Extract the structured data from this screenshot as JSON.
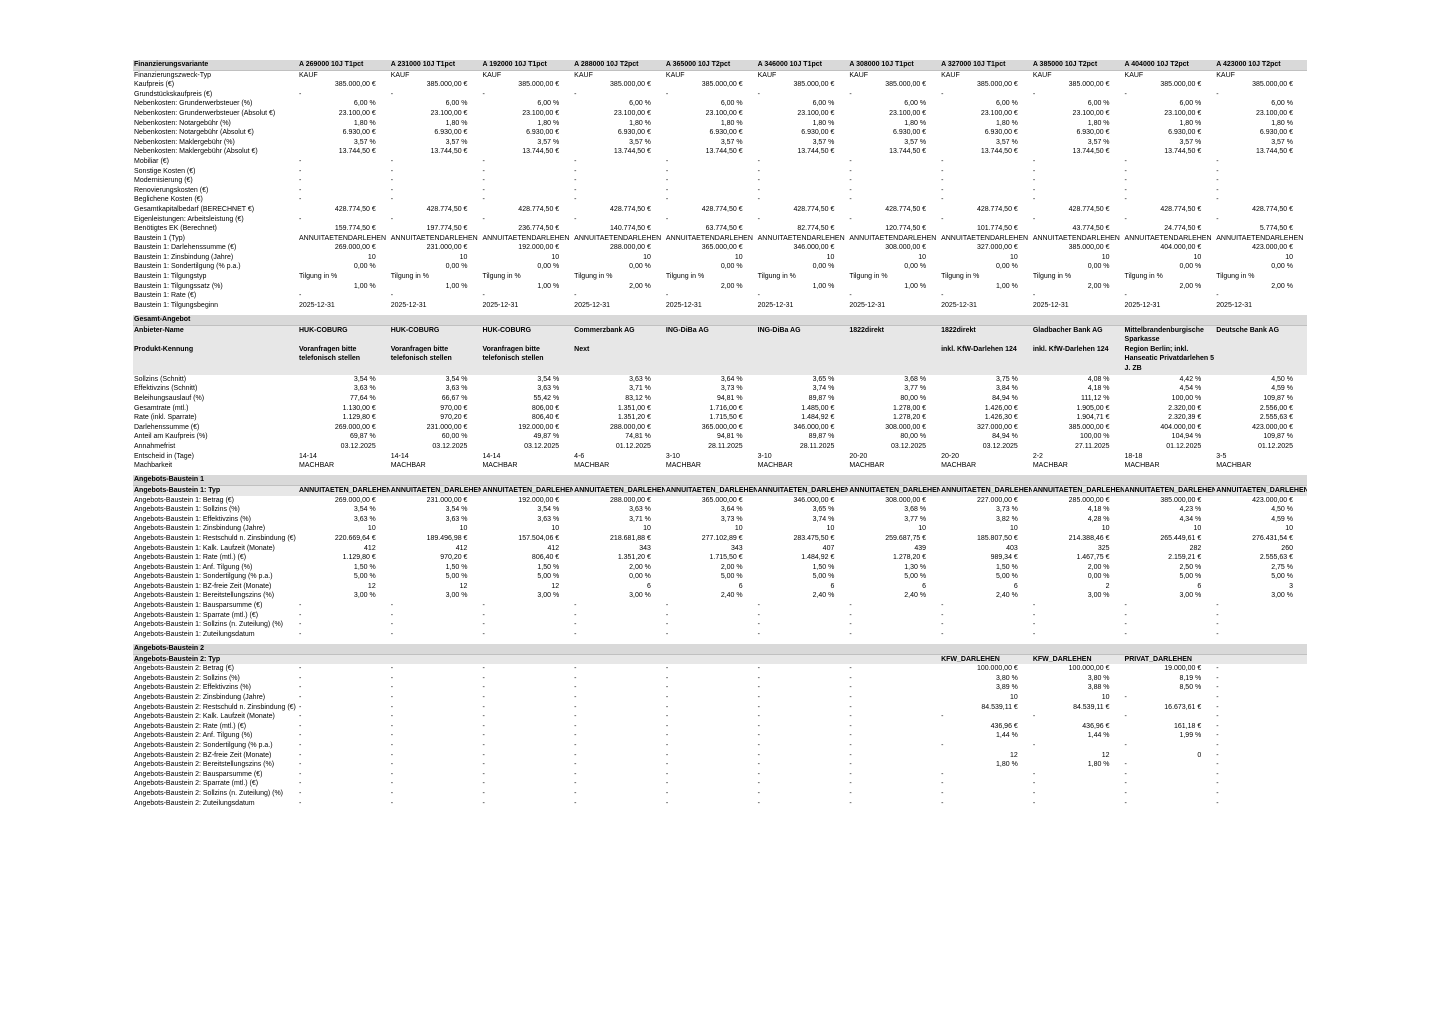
{
  "colors": {
    "section_header_bg": "#d9d9d9",
    "subheader_bg": "#e7e7e7",
    "text": "#000000"
  },
  "table": {
    "corner_label": "Finanzierungsvariante",
    "columns": [
      "A 269000 10J T1pct",
      "A 231000 10J T1pct",
      "A 192000 10J T1pct",
      "A 288000 10J T2pct",
      "A 365000 10J T2pct",
      "A 346000 10J T1pct",
      "A 308000 10J T1pct",
      "A 327000 10J T1pct",
      "A 385000 10J T2pct",
      "A 404000 10J T2pct",
      "A 423000 10J T2pct"
    ],
    "sections": [
      {
        "id": "finanzierungsvariante",
        "rows": [
          {
            "label": "Finanzierungszweck-Typ",
            "values": "KAUF",
            "align": "left"
          },
          {
            "label": "Kaufpreis (€)",
            "values": "385.000,00 €"
          },
          {
            "label": "Grundstückskaufpreis (€)",
            "values": "-"
          },
          {
            "label": "Nebenkosten: Grunderwerbsteuer (%)",
            "values": "6,00 %"
          },
          {
            "label": "Nebenkosten: Grunderwerbsteuer (Absolut €)",
            "values": "23.100,00 €"
          },
          {
            "label": "Nebenkosten: Notargebühr (%)",
            "values": "1,80 %"
          },
          {
            "label": "Nebenkosten: Notargebühr (Absolut €)",
            "values": "6.930,00 €"
          },
          {
            "label": "Nebenkosten: Maklergebühr (%)",
            "values": "3,57 %"
          },
          {
            "label": "Nebenkosten: Maklergebühr (Absolut €)",
            "values": "13.744,50 €"
          },
          {
            "label": "Mobiliar (€)",
            "values": "-"
          },
          {
            "label": "Sonstige Kosten (€)",
            "values": "-"
          },
          {
            "label": "Modernisierung (€)",
            "values": "-"
          },
          {
            "label": "Renovierungskosten (€)",
            "values": "-"
          },
          {
            "label": "Beglichene Kosten (€)",
            "values": "-"
          },
          {
            "label": "Gesamtkapitalbedarf (BERECHNET €)",
            "values": "428.774,50 €"
          },
          {
            "label": "Eigenleistungen: Arbeitsleistung (€)",
            "values": "-"
          },
          {
            "label": "Benötigtes EK (Berechnet)",
            "values": [
              "159.774,50 €",
              "197.774,50 €",
              "236.774,50 €",
              "140.774,50 €",
              "63.774,50 €",
              "82.774,50 €",
              "120.774,50 €",
              "101.774,50 €",
              "43.774,50 €",
              "24.774,50 €",
              "5.774,50 €"
            ]
          },
          {
            "label": "Baustein 1 (Typ)",
            "values": "ANNUITAETENDARLEHEN",
            "align": "left"
          },
          {
            "label": "Baustein 1: Darlehenssumme (€)",
            "values": [
              "269.000,00 €",
              "231.000,00 €",
              "192.000,00 €",
              "288.000,00 €",
              "365.000,00 €",
              "346.000,00 €",
              "308.000,00 €",
              "327.000,00 €",
              "385.000,00 €",
              "404.000,00 €",
              "423.000,00 €"
            ]
          },
          {
            "label": "Baustein 1: Zinsbindung (Jahre)",
            "values": "10"
          },
          {
            "label": "Baustein 1: Sondertilgung (% p.a.)",
            "values": "0,00 %"
          },
          {
            "label": "Baustein 1: Tilgungstyp",
            "values": "Tilgung in %",
            "align": "left"
          },
          {
            "label": "Baustein 1: Tilgungssatz (%)",
            "values": [
              "1,00 %",
              "1,00 %",
              "1,00 %",
              "2,00 %",
              "2,00 %",
              "1,00 %",
              "1,00 %",
              "1,00 %",
              "2,00 %",
              "2,00 %",
              "2,00 %"
            ]
          },
          {
            "label": "Baustein 1: Rate (€)",
            "values": "-"
          },
          {
            "label": "Baustein 1: Tilgungsbeginn",
            "values": "2025-12-31",
            "align": "left"
          }
        ]
      },
      {
        "id": "gesamt-angebot",
        "title": "Gesamt-Angebot",
        "rows": [
          {
            "label": "Anbieter-Name",
            "bold": true,
            "vbold": true,
            "bg": true,
            "align": "left",
            "wrap": true,
            "h": 19,
            "values": [
              "HUK-COBURG",
              "HUK-COBURG",
              "HUK-COBURG",
              "Commerzbank AG",
              "ING-DiBa AG",
              "ING-DiBa AG",
              "1822direkt",
              "1822direkt",
              "Gladbacher Bank AG",
              "Mittelbrandenburgische Sparkasse",
              "Deutsche Bank AG"
            ]
          },
          {
            "label": "Produkt-Kennung",
            "bold": true,
            "vbold": true,
            "bg": true,
            "align": "left",
            "wrap": true,
            "h": 30,
            "values": [
              "Voranfragen bitte telefonisch stellen",
              "Voranfragen bitte telefonisch stellen",
              "Voranfragen bitte telefonisch stellen",
              "Next",
              "",
              "",
              "",
              "inkl. KfW-Darlehen 124",
              "inkl. KfW-Darlehen 124",
              "Region Berlin; inkl. Hanseatic Privatdarlehen 5 J. ZB",
              ""
            ]
          },
          {
            "label": "Sollzins (Schnitt)",
            "values": [
              "3,54 %",
              "3,54 %",
              "3,54 %",
              "3,63 %",
              "3,64 %",
              "3,65 %",
              "3,68 %",
              "3,75 %",
              "4,08 %",
              "4,42 %",
              "4,50 %"
            ]
          },
          {
            "label": "Effektivzins (Schnitt)",
            "values": [
              "3,63 %",
              "3,63 %",
              "3,63 %",
              "3,71 %",
              "3,73 %",
              "3,74 %",
              "3,77 %",
              "3,84 %",
              "4,18 %",
              "4,54 %",
              "4,59 %"
            ]
          },
          {
            "label": "Beleihungsauslauf (%)",
            "values": [
              "77,64 %",
              "66,67 %",
              "55,42 %",
              "83,12 %",
              "94,81 %",
              "89,87 %",
              "80,00 %",
              "84,94 %",
              "111,12 %",
              "100,00 %",
              "109,87 %"
            ]
          },
          {
            "label": "Gesamtrate (mtl.)",
            "values": [
              "1.130,00 €",
              "970,00 €",
              "806,00 €",
              "1.351,00 €",
              "1.716,00 €",
              "1.485,00 €",
              "1.278,00 €",
              "1.426,00 €",
              "1.905,00 €",
              "2.320,00 €",
              "2.556,00 €"
            ]
          },
          {
            "label": "Rate (inkl. Sparrate)",
            "values": [
              "1.129,80 €",
              "970,20 €",
              "806,40 €",
              "1.351,20 €",
              "1.715,50 €",
              "1.484,92 €",
              "1.278,20 €",
              "1.426,30 €",
              "1.904,71 €",
              "2.320,39 €",
              "2.555,63 €"
            ]
          },
          {
            "label": "Darlehenssumme (€)",
            "values": [
              "269.000,00 €",
              "231.000,00 €",
              "192.000,00 €",
              "288.000,00 €",
              "365.000,00 €",
              "346.000,00 €",
              "308.000,00 €",
              "327.000,00 €",
              "385.000,00 €",
              "404.000,00 €",
              "423.000,00 €"
            ]
          },
          {
            "label": "Anteil am Kaufpreis (%)",
            "values": [
              "69,87 %",
              "60,00 %",
              "49,87 %",
              "74,81 %",
              "94,81 %",
              "89,87 %",
              "80,00 %",
              "84,94 %",
              "100,00 %",
              "104,94 %",
              "109,87 %"
            ]
          },
          {
            "label": "Annahmefrist",
            "values": [
              "03.12.2025",
              "03.12.2025",
              "03.12.2025",
              "01.12.2025",
              "28.11.2025",
              "28.11.2025",
              "03.12.2025",
              "03.12.2025",
              "27.11.2025",
              "01.12.2025",
              "01.12.2025"
            ]
          },
          {
            "label": "Entscheid in (Tage)",
            "align": "left",
            "values": [
              "14-14",
              "14-14",
              "14-14",
              "4-6",
              "3-10",
              "3-10",
              "20-20",
              "20-20",
              "2-2",
              "18-18",
              "3-5"
            ]
          },
          {
            "label": "Machbarkeit",
            "values": "MACHBAR",
            "align": "left"
          }
        ]
      },
      {
        "id": "angebots-baustein-1",
        "title": "Angebots-Baustein 1",
        "rows": [
          {
            "label": "Angebots-Baustein 1: Typ",
            "bold": true,
            "vbold": true,
            "bg": true,
            "align": "left",
            "values": "ANNUITAETEN_DARLEHEN"
          },
          {
            "label": "Angebots-Baustein 1: Betrag (€)",
            "values": [
              "269.000,00 €",
              "231.000,00 €",
              "192.000,00 €",
              "288.000,00 €",
              "365.000,00 €",
              "346.000,00 €",
              "308.000,00 €",
              "227.000,00 €",
              "285.000,00 €",
              "385.000,00 €",
              "423.000,00 €"
            ]
          },
          {
            "label": "Angebots-Baustein 1: Sollzins (%)",
            "values": [
              "3,54 %",
              "3,54 %",
              "3,54 %",
              "3,63 %",
              "3,64 %",
              "3,65 %",
              "3,68 %",
              "3,73 %",
              "4,18 %",
              "4,23 %",
              "4,50 %"
            ]
          },
          {
            "label": "Angebots-Baustein 1: Effektivzins (%)",
            "values": [
              "3,63 %",
              "3,63 %",
              "3,63 %",
              "3,71 %",
              "3,73 %",
              "3,74 %",
              "3,77 %",
              "3,82 %",
              "4,28 %",
              "4,34 %",
              "4,59 %"
            ]
          },
          {
            "label": "Angebots-Baustein 1: Zinsbindung (Jahre)",
            "values": "10"
          },
          {
            "label": "Angebots-Baustein 1: Restschuld n. Zinsbindung (€)",
            "values": [
              "220.669,64 €",
              "189.496,98 €",
              "157.504,06 €",
              "218.681,88 €",
              "277.102,89 €",
              "283.475,50 €",
              "259.687,75 €",
              "185.807,50 €",
              "214.388,46 €",
              "265.449,61 €",
              "276.431,54 €"
            ]
          },
          {
            "label": "Angebots-Baustein 1: Kalk. Laufzeit (Monate)",
            "values": [
              "412",
              "412",
              "412",
              "343",
              "343",
              "407",
              "439",
              "403",
              "325",
              "282",
              "260"
            ]
          },
          {
            "label": "Angebots-Baustein 1: Rate (mtl.) (€)",
            "values": [
              "1.129,80 €",
              "970,20 €",
              "806,40 €",
              "1.351,20 €",
              "1.715,50 €",
              "1.484,92 €",
              "1.278,20 €",
              "989,34 €",
              "1.467,75 €",
              "2.159,21 €",
              "2.555,63 €"
            ]
          },
          {
            "label": "Angebots-Baustein 1: Anf. Tilgung (%)",
            "values": [
              "1,50 %",
              "1,50 %",
              "1,50 %",
              "2,00 %",
              "2,00 %",
              "1,50 %",
              "1,30 %",
              "1,50 %",
              "2,00 %",
              "2,50 %",
              "2,75 %"
            ]
          },
          {
            "label": "Angebots-Baustein 1: Sondertilgung (% p.a.)",
            "values": [
              "5,00 %",
              "5,00 %",
              "5,00 %",
              "0,00 %",
              "5,00 %",
              "5,00 %",
              "5,00 %",
              "5,00 %",
              "0,00 %",
              "5,00 %",
              "5,00 %"
            ]
          },
          {
            "label": "Angebots-Baustein 1: BZ-freie Zeit (Monate)",
            "values": [
              "12",
              "12",
              "12",
              "6",
              "6",
              "6",
              "6",
              "6",
              "2",
              "6",
              "3"
            ]
          },
          {
            "label": "Angebots-Baustein 1: Bereitstellungszins (%)",
            "values": [
              "3,00 %",
              "3,00 %",
              "3,00 %",
              "3,00 %",
              "2,40 %",
              "2,40 %",
              "2,40 %",
              "2,40 %",
              "3,00 %",
              "3,00 %",
              "3,00 %"
            ]
          },
          {
            "label": "Angebots-Baustein 1: Bausparsumme (€)",
            "values": "-"
          },
          {
            "label": "Angebots-Baustein 1: Sparrate (mtl.) (€)",
            "values": "-"
          },
          {
            "label": "Angebots-Baustein 1: Sollzins (n. Zuteilung) (%)",
            "values": "-"
          },
          {
            "label": "Angebots-Baustein 1: Zuteilungsdatum",
            "values": "-"
          }
        ]
      },
      {
        "id": "angebots-baustein-2",
        "title": "Angebots-Baustein 2",
        "rows": [
          {
            "label": "Angebots-Baustein 2: Typ",
            "bold": true,
            "vbold": true,
            "bg": true,
            "align": "left",
            "values": [
              "",
              "",
              "",
              "",
              "",
              "",
              "",
              "KFW_DARLEHEN",
              "KFW_DARLEHEN",
              "PRIVAT_DARLEHEN",
              ""
            ]
          },
          {
            "label": "Angebots-Baustein 2: Betrag (€)",
            "values": [
              "-",
              "-",
              "-",
              "-",
              "-",
              "-",
              "-",
              "100.000,00 €",
              "100.000,00 €",
              "19.000,00 €",
              "-"
            ]
          },
          {
            "label": "Angebots-Baustein 2: Sollzins (%)",
            "values": [
              "-",
              "-",
              "-",
              "-",
              "-",
              "-",
              "-",
              "3,80 %",
              "3,80 %",
              "8,19 %",
              "-"
            ]
          },
          {
            "label": "Angebots-Baustein 2: Effektivzins (%)",
            "values": [
              "-",
              "-",
              "-",
              "-",
              "-",
              "-",
              "-",
              "3,89 %",
              "3,88 %",
              "8,50 %",
              "-"
            ]
          },
          {
            "label": "Angebots-Baustein 2: Zinsbindung (Jahre)",
            "values": [
              "-",
              "-",
              "-",
              "-",
              "-",
              "-",
              "-",
              "10",
              "10",
              "-",
              "-"
            ]
          },
          {
            "label": "Angebots-Baustein 2: Restschuld n. Zinsbindung (€)",
            "values": [
              "-",
              "-",
              "-",
              "-",
              "-",
              "-",
              "-",
              "84.539,11 €",
              "84.539,11 €",
              "16.673,61 €",
              "-"
            ]
          },
          {
            "label": "Angebots-Baustein 2: Kalk. Laufzeit (Monate)",
            "values": "-"
          },
          {
            "label": "Angebots-Baustein 2: Rate (mtl.) (€)",
            "values": [
              "-",
              "-",
              "-",
              "-",
              "-",
              "-",
              "-",
              "436,96 €",
              "436,96 €",
              "161,18 €",
              "-"
            ]
          },
          {
            "label": "Angebots-Baustein 2: Anf. Tilgung (%)",
            "values": [
              "-",
              "-",
              "-",
              "-",
              "-",
              "-",
              "-",
              "1,44 %",
              "1,44 %",
              "1,99 %",
              "-"
            ]
          },
          {
            "label": "Angebots-Baustein 2: Sondertilgung (% p.a.)",
            "values": "-"
          },
          {
            "label": "Angebots-Baustein 2: BZ-freie Zeit (Monate)",
            "values": [
              "-",
              "-",
              "-",
              "-",
              "-",
              "-",
              "-",
              "12",
              "12",
              "0",
              "-"
            ]
          },
          {
            "label": "Angebots-Baustein 2: Bereitstellungszins (%)",
            "values": [
              "-",
              "-",
              "-",
              "-",
              "-",
              "-",
              "-",
              "1,80 %",
              "1,80 %",
              "-",
              "-"
            ]
          },
          {
            "label": "Angebots-Baustein 2: Bausparsumme (€)",
            "values": "-"
          },
          {
            "label": "Angebots-Baustein 2: Sparrate (mtl.) (€)",
            "values": "-"
          },
          {
            "label": "Angebots-Baustein 2: Sollzins (n. Zuteilung) (%)",
            "values": "-"
          },
          {
            "label": "Angebots-Baustein 2: Zuteilungsdatum",
            "values": "-"
          }
        ]
      }
    ]
  }
}
